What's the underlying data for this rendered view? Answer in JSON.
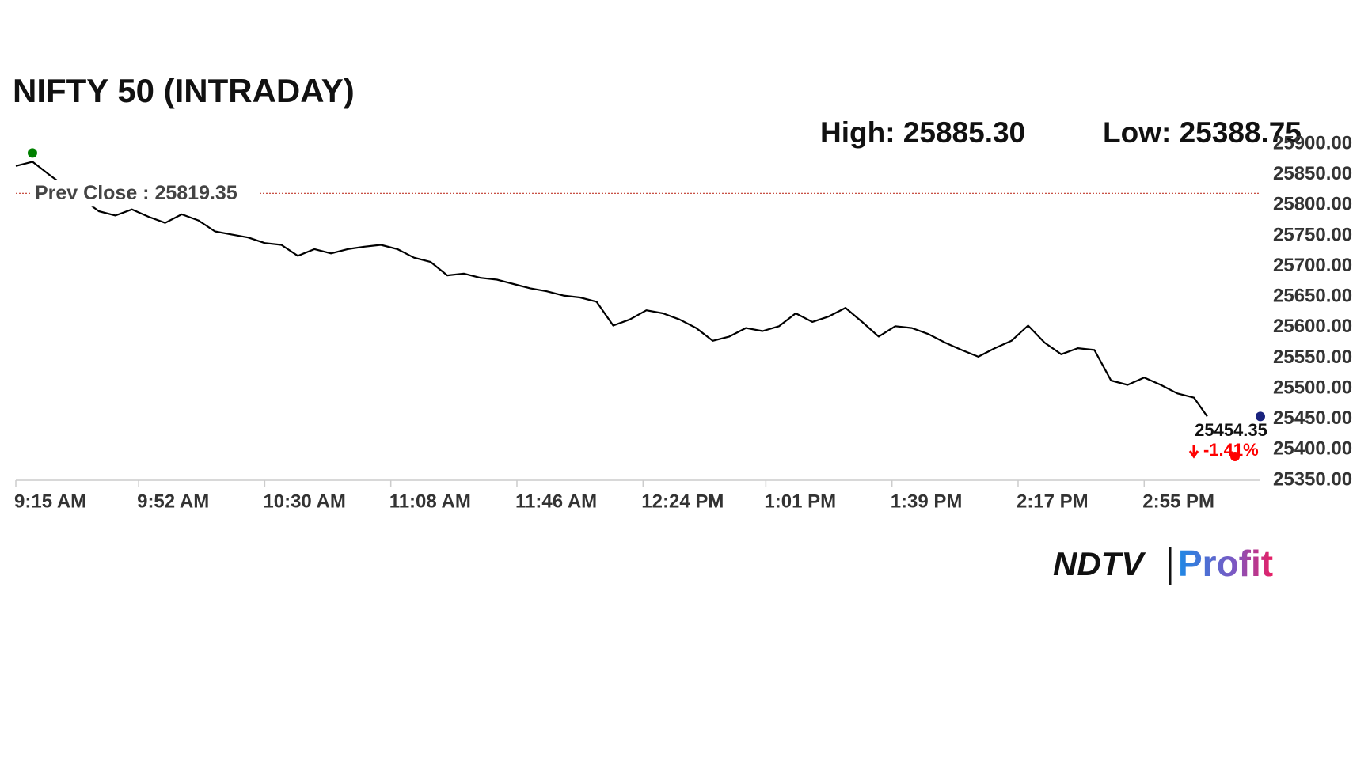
{
  "chart_data": {
    "type": "line",
    "title": "NIFTY 50 (INTRADAY)",
    "high": {
      "value": 25885.3,
      "label": "High: 25885.30"
    },
    "low": {
      "value": 25388.75,
      "label": "Low: 25388.75"
    },
    "prev_close": {
      "value": 25819.35,
      "label": "Prev Close : 25819.35"
    },
    "last": 25454.35,
    "change": {
      "value": -1.41,
      "label": "-1.41%"
    },
    "x": [
      "9:15 AM",
      "9:20 AM",
      "9:25 AM",
      "9:30 AM",
      "9:35 AM",
      "9:40 AM",
      "9:45 AM",
      "9:50 AM",
      "9:55 AM",
      "10:00 AM",
      "10:05 AM",
      "10:10 AM",
      "10:15 AM",
      "10:20 AM",
      "10:25 AM",
      "10:30 AM",
      "10:35 AM",
      "10:40 AM",
      "10:45 AM",
      "10:50 AM",
      "10:55 AM",
      "11:00 AM",
      "11:05 AM",
      "11:10 AM",
      "11:15 AM",
      "11:20 AM",
      "11:25 AM",
      "11:30 AM",
      "11:35 AM",
      "11:40 AM",
      "11:45 AM",
      "11:50 AM",
      "11:55 AM",
      "12:00 PM",
      "12:05 PM",
      "12:10 PM",
      "12:15 PM",
      "12:20 PM",
      "12:25 PM",
      "12:30 PM",
      "12:35 PM",
      "12:40 PM",
      "12:45 PM",
      "12:50 PM",
      "12:55 PM",
      "1:00 PM",
      "1:05 PM",
      "1:10 PM",
      "1:15 PM",
      "1:20 PM",
      "1:25 PM",
      "1:30 PM",
      "1:35 PM",
      "1:40 PM",
      "1:45 PM",
      "1:50 PM",
      "1:55 PM",
      "2:00 PM",
      "2:05 PM",
      "2:10 PM",
      "2:15 PM",
      "2:20 PM",
      "2:25 PM",
      "2:30 PM",
      "2:35 PM",
      "2:40 PM",
      "2:45 PM",
      "2:50 PM",
      "2:55 PM",
      "3:00 PM",
      "3:05 PM",
      "3:10 PM",
      "3:14 PM"
    ],
    "series": [
      {
        "name": "NIFTY 50",
        "color": "#000000",
        "values": [
          25864,
          25871,
          25850,
          25830,
          25810,
          25790,
          25783,
          25793,
          25781,
          25771,
          25785,
          25775,
          25757,
          25752,
          25747,
          25738,
          25735,
          25717,
          25728,
          25721,
          25728,
          25732,
          25735,
          25728,
          25714,
          25707,
          25685,
          25688,
          25681,
          25678,
          25671,
          25664,
          25659,
          25652,
          25649,
          25642,
          25603,
          25613,
          25628,
          25623,
          25613,
          25599,
          25578,
          25585,
          25599,
          25594,
          25602,
          25623,
          25609,
          25618,
          25632,
          25609,
          25585,
          25602,
          25599,
          25589,
          25575,
          25563,
          25552,
          25566,
          25578,
          25603,
          25575,
          25556,
          25566,
          25563,
          25513,
          25506,
          25518,
          25506,
          25492,
          25485,
          25454.35
        ]
      }
    ],
    "xlim": [
      "9:15 AM",
      "3:30 PM"
    ],
    "xticks": [
      "9:15 AM",
      "9:52 AM",
      "10:30 AM",
      "11:08 AM",
      "11:46 AM",
      "12:24 PM",
      "1:01 PM",
      "1:39 PM",
      "2:17 PM",
      "2:55 PM"
    ],
    "ylim": [
      25350,
      25900
    ],
    "yticks": [
      {
        "value": 25350,
        "label": "25350.00"
      },
      {
        "value": 25400,
        "label": "25400.00"
      },
      {
        "value": 25450,
        "label": "25450.00"
      },
      {
        "value": 25500,
        "label": "25500.00"
      },
      {
        "value": 25550,
        "label": "25550.00"
      },
      {
        "value": 25600,
        "label": "25600.00"
      },
      {
        "value": 25650,
        "label": "25650.00"
      },
      {
        "value": 25700,
        "label": "25700.00"
      },
      {
        "value": 25750,
        "label": "25750.00"
      },
      {
        "value": 25800,
        "label": "25800.00"
      },
      {
        "value": 25850,
        "label": "25850.00"
      },
      {
        "value": 25900,
        "label": "25900.00"
      }
    ]
  },
  "logo": {
    "left": "NDTV",
    "right": "Profit"
  }
}
